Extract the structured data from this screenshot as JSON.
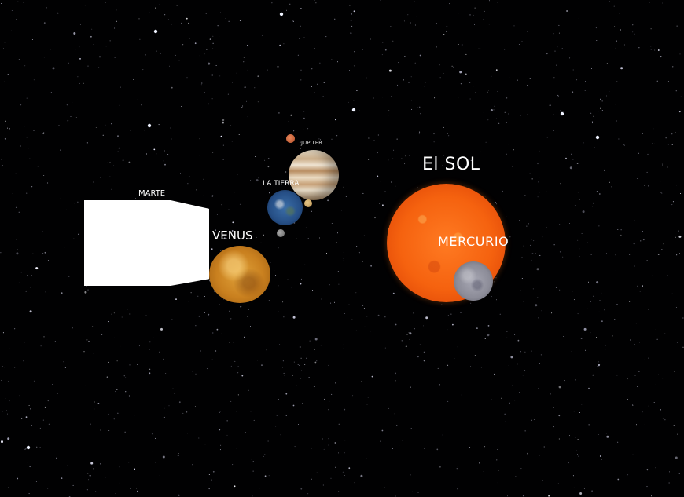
{
  "scene": {
    "labels": {
      "sun": "El SOL",
      "mercury": "MERCURIO",
      "venus": "VENUS",
      "mars": "MARTE",
      "earth": "LA TIERRA",
      "jupiter": "JUPITER"
    }
  },
  "colors": {
    "background": "#010102",
    "label": "#ffffff",
    "sun": "#f5620f",
    "mars_cube": "#ffffff"
  }
}
